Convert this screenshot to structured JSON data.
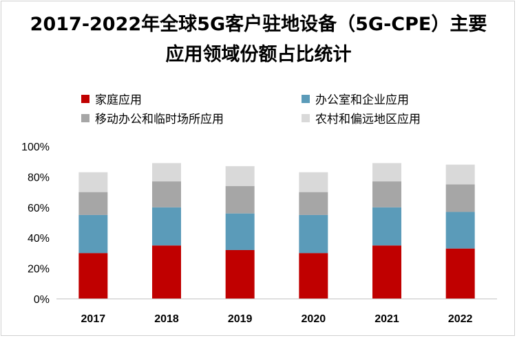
{
  "chart_data": {
    "type": "bar",
    "stacked": true,
    "title": "2017-2022年全球5G客户驻地设备（5G-CPE）主要应用领域份额占比统计",
    "title_line1": "2017-2022年全球5G客户驻地设备（5G-CPE）主要",
    "title_line2": "应用领域份额占比统计",
    "categories": [
      "2017",
      "2018",
      "2019",
      "2020",
      "2021",
      "2022"
    ],
    "series": [
      {
        "name": "家庭应用",
        "color": "#C00000",
        "values": [
          30,
          35,
          32,
          30,
          35,
          33
        ]
      },
      {
        "name": "办公室和企业应用",
        "color": "#5B9BB9",
        "values": [
          25,
          25,
          24,
          25,
          25,
          24
        ]
      },
      {
        "name": "移动办公和临时场所应用",
        "color": "#A6A6A6",
        "values": [
          15,
          17,
          18,
          15,
          17,
          18
        ]
      },
      {
        "name": "农村和偏远地区应用",
        "color": "#D9D9D9",
        "values": [
          13,
          12,
          13,
          13,
          12,
          13
        ]
      }
    ],
    "ylim": [
      0,
      100
    ],
    "yticks": [
      "0%",
      "20%",
      "40%",
      "60%",
      "80%",
      "100%"
    ],
    "xlabel": "",
    "ylabel": "",
    "legend_position": "top"
  }
}
